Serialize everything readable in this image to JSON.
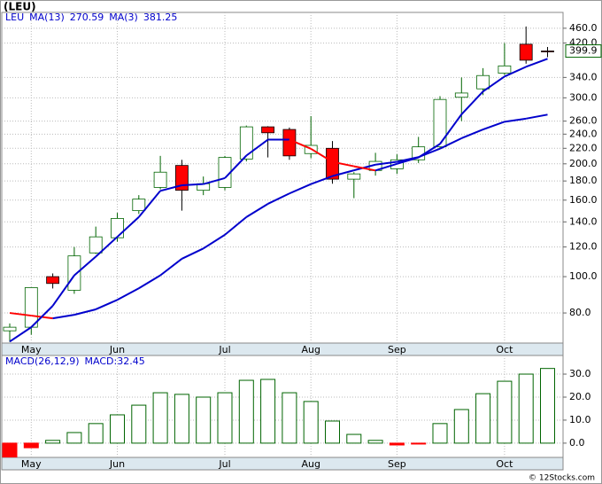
{
  "title": "(LEU)",
  "watermark": "© 12Stocks.com",
  "chart_data": [
    {
      "type": "candlestick",
      "name": "LEU",
      "categories": [
        null,
        "May",
        null,
        null,
        null,
        "Jun",
        null,
        null,
        null,
        null,
        "Jul",
        null,
        null,
        null,
        "Aug",
        null,
        null,
        null,
        "Sep",
        null,
        null,
        null,
        null,
        "Oct",
        null,
        null
      ],
      "open": [
        71.7,
        73.3,
        100,
        92,
        115.7,
        127,
        150,
        173,
        198,
        170,
        173,
        206,
        251,
        247,
        213,
        220,
        182,
        192,
        194,
        205,
        222,
        301,
        317,
        349,
        417,
        400
      ],
      "high": [
        75,
        93.5,
        102,
        120,
        136,
        148,
        165,
        210,
        205,
        185,
        210,
        253,
        252,
        250,
        268,
        230,
        190,
        214,
        212,
        236,
        303,
        340,
        360,
        420,
        465,
        410
      ],
      "low": [
        67,
        70,
        93,
        90,
        115,
        124,
        147,
        171,
        150,
        165,
        170,
        203,
        208,
        205,
        207,
        177,
        162,
        186,
        188,
        201,
        220,
        260,
        305,
        345,
        370,
        385
      ],
      "close": [
        73.3,
        93.5,
        95.9,
        113.6,
        127.7,
        143,
        161,
        190,
        170,
        177,
        208,
        251,
        242,
        210,
        224,
        182,
        188,
        203,
        205,
        222,
        297,
        309,
        344,
        365,
        378,
        399.9
      ],
      "up_color": "#006400",
      "down_color": "#ff0000",
      "series": [
        {
          "name": "MA(13)",
          "color": "#0000cc",
          "down_color": "#ff0000",
          "values": [
            80,
            78.7,
            77.4,
            79.1,
            81.8,
            86.7,
            93.1,
            100.8,
            111.6,
            118.9,
            129.3,
            144.2,
            156.4,
            166.7,
            176.6,
            185.5,
            192.2,
            199,
            202.5,
            208.4,
            219.5,
            234,
            247,
            259,
            264,
            270.59
          ]
        },
        {
          "name": "MA(3)",
          "color": "#0000cc",
          "down_color": "#ff0000",
          "values": [
            67.1,
            73.3,
            83.6,
            100.8,
            113.1,
            127.7,
            144.2,
            169.4,
            175.3,
            176.6,
            183.2,
            210.4,
            232,
            232,
            219.4,
            202.4,
            197,
            192,
            200,
            208,
            226,
            271,
            312,
            342,
            363,
            381.25
          ]
        }
      ],
      "log_scale": true,
      "grid": true,
      "ylim": [
        66.5,
        507
      ],
      "yticks": [
        {
          "value": 460,
          "label": "460.0"
        },
        {
          "value": 420,
          "label": "420.0"
        },
        {
          "value": 340,
          "label": "340.0"
        },
        {
          "value": 300,
          "label": "300.0"
        },
        {
          "value": 260,
          "label": "260.0"
        },
        {
          "value": 240,
          "label": "240.0"
        },
        {
          "value": 220,
          "label": "220.0"
        },
        {
          "value": 200,
          "label": "200.0"
        },
        {
          "value": 180,
          "label": "180.0"
        },
        {
          "value": 160,
          "label": "160.0"
        },
        {
          "value": 140,
          "label": "140.0"
        },
        {
          "value": 120,
          "label": "120.0"
        },
        {
          "value": 100,
          "label": "100.0"
        },
        {
          "value": 80,
          "label": "80.0"
        }
      ]
    },
    {
      "type": "bar",
      "title": "MACD(26,12,9)",
      "series": [
        {
          "name": "MACD:",
          "color": "#006400",
          "negative_color": "#ff0000",
          "values": [
            -6,
            -2,
            1.2,
            4.6,
            8.5,
            12.3,
            16.5,
            21.9,
            21.2,
            20,
            21.9,
            27.3,
            27.7,
            21.9,
            18.1,
            9.6,
            3.8,
            1.2,
            -0.8,
            -0.4,
            8.5,
            14.6,
            21.5,
            26.9,
            30,
            32.45
          ]
        }
      ],
      "grid": true,
      "ylim": [
        -6.2,
        38.1
      ],
      "yticks": [
        {
          "value": 30,
          "label": "30.0"
        },
        {
          "value": 20,
          "label": "20.0"
        },
        {
          "value": 10,
          "label": "10.0"
        },
        {
          "value": 0,
          "label": "0.0"
        }
      ]
    }
  ]
}
